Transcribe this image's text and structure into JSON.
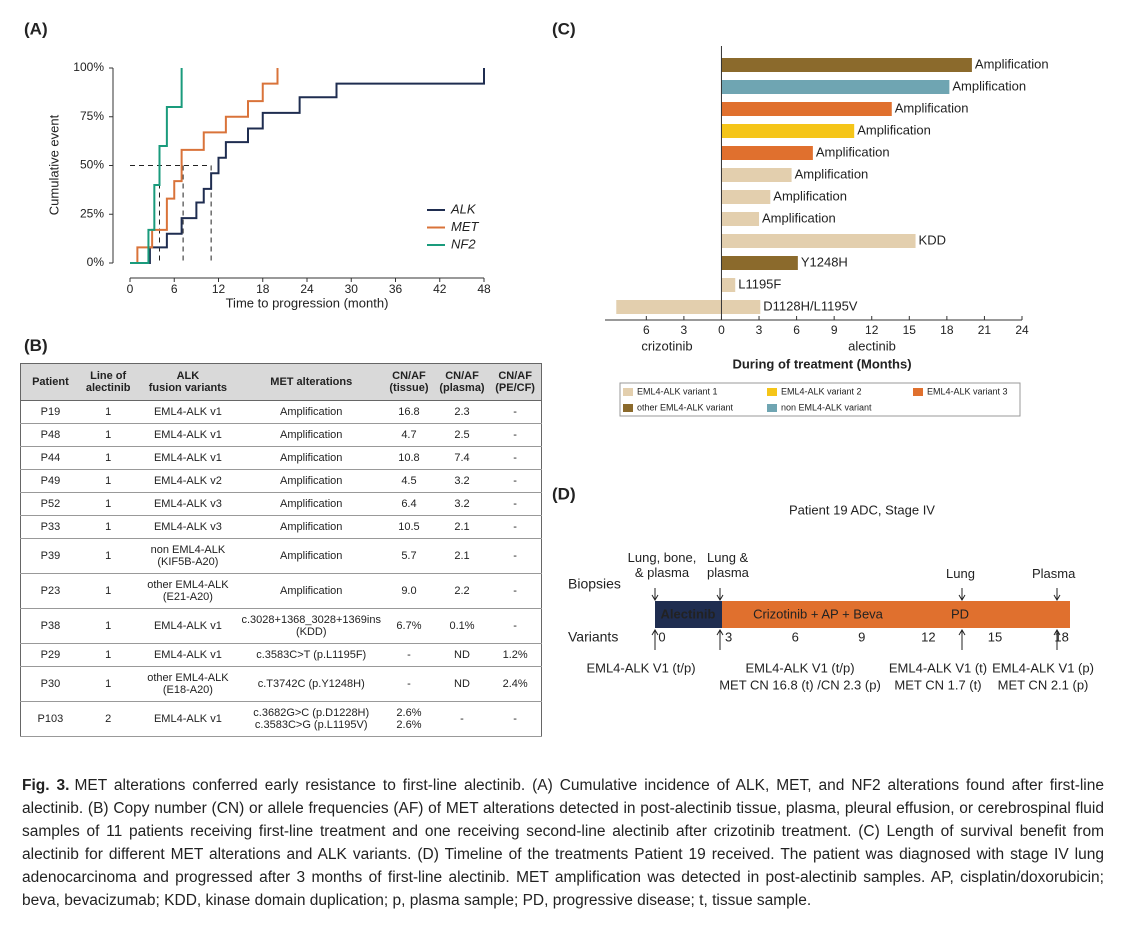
{
  "chart_data": [
    {
      "type": "line",
      "panel_label": "(A)",
      "xlabel": "Time to progression (month)",
      "ylabel": "Cumulative event",
      "xlim": [
        0,
        48
      ],
      "xticks": [
        0,
        6,
        12,
        18,
        24,
        30,
        36,
        42,
        48
      ],
      "ylim": [
        0,
        100
      ],
      "yticks": [
        {
          "value": 0,
          "label": "0%"
        },
        {
          "value": 25,
          "label": "25%"
        },
        {
          "value": 50,
          "label": "50%"
        },
        {
          "value": 75,
          "label": "75%"
        },
        {
          "value": 100,
          "label": "100%"
        }
      ],
      "legend": "lower right",
      "series": [
        {
          "name": "ALK",
          "color": "#1f2d50",
          "x": [
            0,
            2.7,
            5,
            7,
            9,
            10,
            11,
            12,
            13,
            16,
            18,
            23,
            28,
            48
          ],
          "values": [
            0,
            8,
            15,
            23,
            31,
            38,
            46,
            54,
            62,
            69,
            77,
            85,
            92,
            100
          ]
        },
        {
          "name": "MET",
          "color": "#d9733a",
          "x": [
            0,
            1,
            3,
            5,
            6,
            7,
            10,
            13,
            16,
            18,
            20
          ],
          "values": [
            0,
            8,
            17,
            33,
            42,
            58,
            67,
            75,
            83,
            92,
            100
          ]
        },
        {
          "name": "NF2",
          "color": "#1a9b7c",
          "x": [
            0,
            2.5,
            3.3,
            4,
            5,
            7
          ],
          "values": [
            0,
            17,
            40,
            60,
            80,
            100
          ]
        }
      ],
      "reference": {
        "level": 50,
        "x": [
          4,
          7.2,
          11
        ]
      }
    },
    {
      "type": "bar",
      "orientation": "horizontal",
      "panel_label": "(C)",
      "xlabel": "During of treatment (Months)",
      "xlim": [
        -9.3,
        24
      ],
      "xticks": [
        {
          "value": -6,
          "label": "6"
        },
        {
          "value": -3,
          "label": "3"
        },
        0,
        3,
        6,
        9,
        12,
        15,
        18,
        21,
        24
      ],
      "categories": [
        null,
        null,
        null,
        null,
        null,
        null,
        null,
        null,
        null,
        null,
        null,
        null
      ],
      "series": [
        {
          "name": "crizotinib",
          "values": [
            null,
            null,
            null,
            null,
            null,
            null,
            null,
            null,
            null,
            null,
            null,
            -8.4
          ]
        },
        {
          "name": "alectinib",
          "values": [
            20.0,
            18.2,
            13.6,
            10.6,
            7.3,
            5.6,
            3.9,
            3.0,
            15.5,
            6.1,
            1.1,
            3.1
          ]
        }
      ],
      "bar_labels": [
        "Amplification",
        "Amplification",
        "Amplification",
        "Amplification",
        "Amplification",
        "Amplification",
        "Amplification",
        "Amplification",
        "KDD",
        "Y1248H",
        "L1195F",
        "D1128H/L1195V"
      ],
      "bar_colors": [
        "#8b6a2c",
        "#6fa5b2",
        "#e0702e",
        "#f5c518",
        "#e0702e",
        "#e3cfae",
        "#e3cfae",
        "#e3cfae",
        "#e3cfae",
        "#8b6a2c",
        "#e3cfae",
        "#e3cfae"
      ],
      "legend_items": [
        {
          "label": "EML4-ALK variant 1",
          "color": "#e3cfae"
        },
        {
          "label": "EML4-ALK variant 2",
          "color": "#f5c518"
        },
        {
          "label": "EML4-ALK variant 3",
          "color": "#e0702e"
        },
        {
          "label": "other EML4-ALK variant",
          "color": "#8b6a2c"
        },
        {
          "label": "non EML4-ALK variant",
          "color": "#6fa5b2"
        }
      ]
    }
  ],
  "table": {
    "panel_label": "(B)",
    "header": [
      "Patient",
      "Line of\nalectinib",
      "ALK\nfusion variants",
      "MET alterations",
      "CN/AF\n(tissue)",
      "CN/AF\n(plasma)",
      "CN/AF\n(PE/CF)"
    ],
    "rows": [
      [
        "P19",
        "1",
        "EML4-ALK v1",
        "Amplification",
        "16.8",
        "2.3",
        "-"
      ],
      [
        "P48",
        "1",
        "EML4-ALK v1",
        "Amplification",
        "4.7",
        "2.5",
        "-"
      ],
      [
        "P44",
        "1",
        "EML4-ALK v1",
        "Amplification",
        "10.8",
        "7.4",
        "-"
      ],
      [
        "P49",
        "1",
        "EML4-ALK v2",
        "Amplification",
        "4.5",
        "3.2",
        "-"
      ],
      [
        "P52",
        "1",
        "EML4-ALK v3",
        "Amplification",
        "6.4",
        "3.2",
        "-"
      ],
      [
        "P33",
        "1",
        "EML4-ALK v3",
        "Amplification",
        "10.5",
        "2.1",
        "-"
      ],
      [
        "P39",
        "1",
        "non EML4-ALK\n(KIF5B-A20)",
        "Amplification",
        "5.7",
        "2.1",
        "-"
      ],
      [
        "P23",
        "1",
        "other EML4-ALK\n(E21-A20)",
        "Amplification",
        "9.0",
        "2.2",
        "-"
      ],
      [
        "P38",
        "1",
        "EML4-ALK v1",
        "c.3028+1368_3028+1369ins\n(KDD)",
        "6.7%",
        "0.1%",
        "-"
      ],
      [
        "P29",
        "1",
        "EML4-ALK v1",
        "c.3583C>T (p.L1195F)",
        "-",
        "ND",
        "1.2%"
      ],
      [
        "P30",
        "1",
        "other EML4-ALK\n(E18-A20)",
        "c.T3742C (p.Y1248H)",
        "-",
        "ND",
        "2.4%"
      ],
      [
        "P103",
        "2",
        "EML4-ALK v1",
        "c.3682G>C (p.D1228H)\nc.3583C>G (p.L1195V)",
        "2.6%\n2.6%",
        "-",
        "-"
      ]
    ]
  },
  "timeline": {
    "panel_label": "(D)",
    "title": "Patient 19  ADC, Stage IV",
    "biopsies_label": "Biopsies",
    "variants_label": "Variants",
    "treatments": [
      "Alectinib",
      "Crizotinib + AP + Beva",
      "PD"
    ],
    "ticks": [
      0,
      3,
      6,
      9,
      12,
      15,
      18
    ],
    "biopsies": [
      "Lung, bone,\n& plasma",
      "Lung &\nplasma",
      "Lung",
      "Plasma"
    ],
    "variants": [
      [
        "EML4-ALK V1 (t/p)"
      ],
      [
        "EML4-ALK V1 (t/p)",
        "MET CN 16.8 (t) /CN 2.3 (p)"
      ],
      [
        "EML4-ALK V1 (t)",
        "MET CN 1.7 (t)"
      ],
      [
        "EML4-ALK V1 (p)",
        "MET CN 2.1 (p)"
      ]
    ]
  },
  "caption": {
    "label": "Fig. 3.",
    "text": "MET alterations conferred early resistance to first-line alectinib. (A) Cumulative incidence of ALK, MET, and NF2 alterations found after first-line alectinib. (B) Copy number (CN) or allele frequencies (AF) of MET alterations detected in post-alectinib tissue, plasma, pleural effusion, or cerebrospinal fluid samples of 11 patients receiving first-line treatment and one receiving second-line alectinib after crizotinib treatment. (C) Length of survival benefit from alectinib for different MET alterations and ALK variants. (D) Timeline of the treatments Patient 19 received. The patient was diagnosed with stage IV lung adenocarcinoma and progressed after 3 months of first-line alectinib. MET amplification was detected in post-alectinib samples. AP, cisplatin/doxorubicin; beva, bevacizumab; KDD, kinase domain duplication; p, plasma sample; PD, progressive disease; t, tissue sample."
  }
}
